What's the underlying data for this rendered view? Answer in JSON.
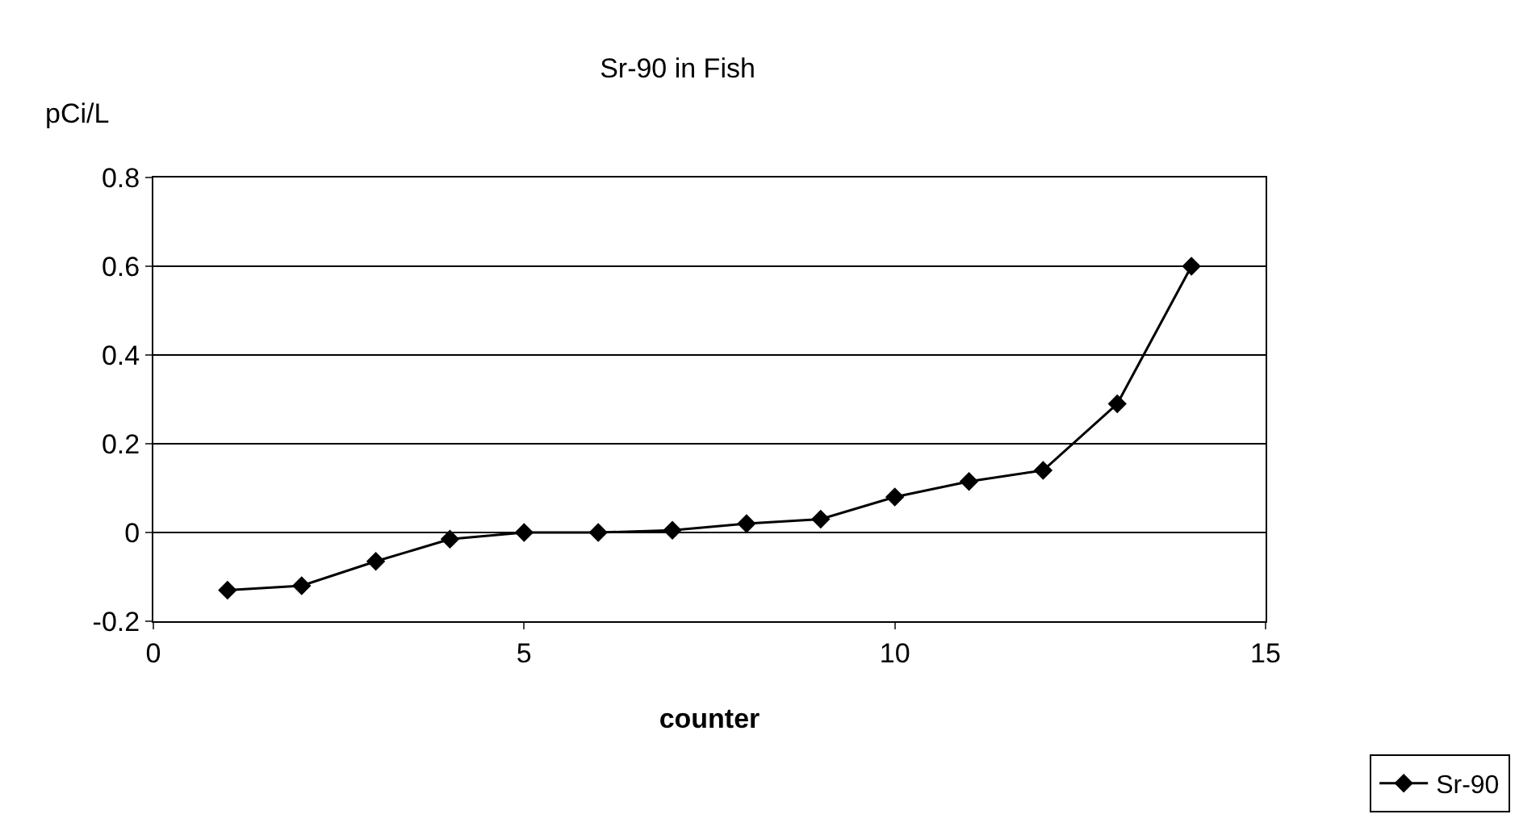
{
  "chart_data": {
    "type": "line",
    "title": "Sr-90 in Fish",
    "xlabel": "counter",
    "ylabel": "pCi/L",
    "x": [
      1,
      2,
      3,
      4,
      5,
      6,
      7,
      8,
      9,
      10,
      11,
      12,
      13,
      14
    ],
    "series": [
      {
        "name": "Sr-90",
        "color": "#000000",
        "values": [
          -0.13,
          -0.12,
          -0.065,
          -0.015,
          0,
          0,
          0.005,
          0.02,
          0.03,
          0.08,
          0.115,
          0.14,
          0.29,
          0.6
        ]
      }
    ],
    "xlim": [
      0,
      15
    ],
    "xticks": [
      0,
      5,
      10,
      15
    ],
    "ylim": [
      -0.2,
      0.8
    ],
    "yticks": [
      -0.2,
      0,
      0.2,
      0.4,
      0.6,
      0.8
    ],
    "grid": "y",
    "legend": "bottom right",
    "marker": "diamond",
    "line_style": "solid"
  }
}
